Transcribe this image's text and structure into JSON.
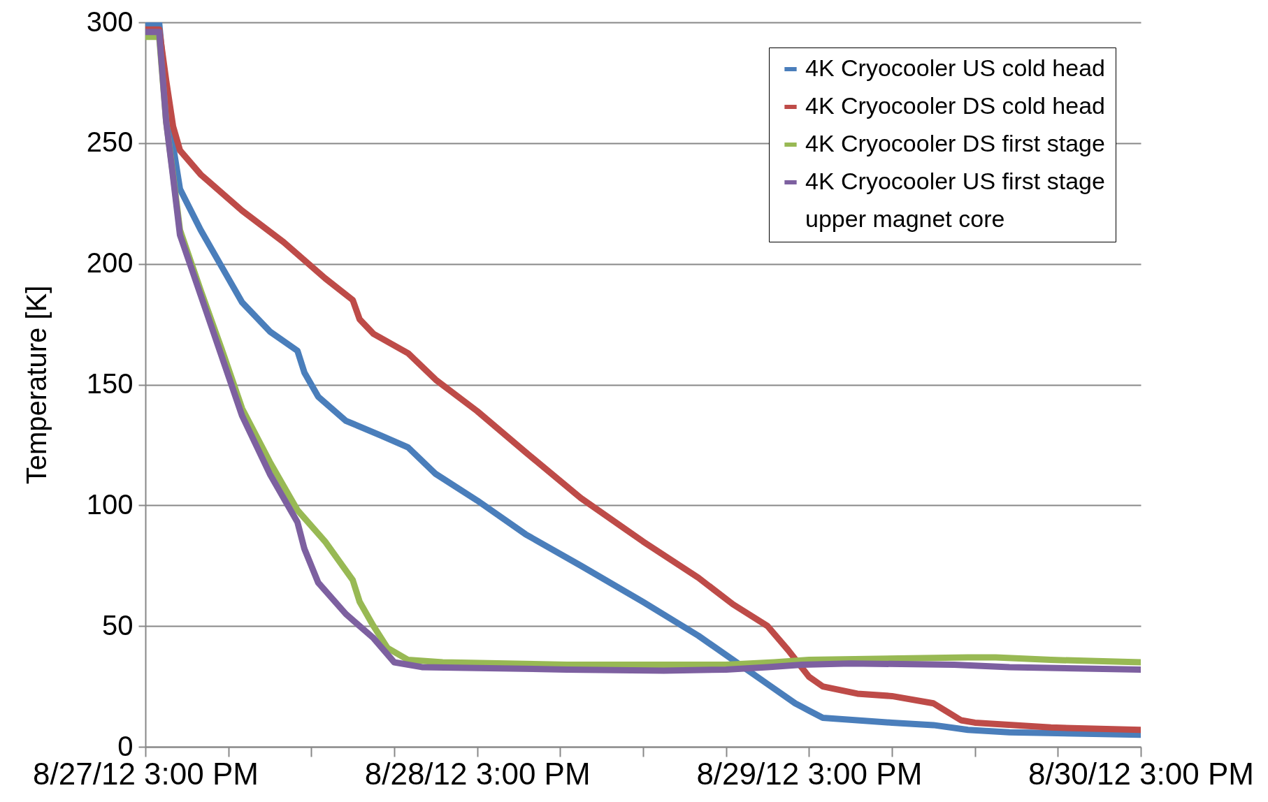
{
  "chart_data": {
    "type": "line",
    "ylabel": "Temperature [K]",
    "ylim": [
      0,
      300
    ],
    "yticks": [
      0,
      50,
      100,
      150,
      200,
      250,
      300
    ],
    "xlim": [
      "--08-27T15:00",
      "--08-30T15:00"
    ],
    "xticks": [
      {
        "value": "--08-27T15:00",
        "label": "8/27/12 3:00 PM"
      },
      {
        "value": "--08-27T21:00",
        "label": null
      },
      {
        "value": "--08-28T03:00",
        "label": null
      },
      {
        "value": "--08-28T09:00",
        "label": null
      },
      {
        "value": "--08-28T15:00",
        "label": "8/28/12 3:00 PM"
      },
      {
        "value": "--08-28T21:00",
        "label": null
      },
      {
        "value": "--08-29T03:00",
        "label": null
      },
      {
        "value": "--08-29T09:00",
        "label": null
      },
      {
        "value": "--08-29T15:00",
        "label": "8/29/12 3:00 PM"
      },
      {
        "value": "--08-29T21:00",
        "label": null
      },
      {
        "value": "--08-30T03:00",
        "label": null
      },
      {
        "value": "--08-30T09:00",
        "label": null
      },
      {
        "value": "--08-30T15:00",
        "label": "8/30/12 3:00 PM"
      }
    ],
    "grid": "y",
    "legend": "top right",
    "series": [
      {
        "name": "4K Cryocooler US cold head",
        "color": "#4a7ebb",
        "x": [
          "--08-27T15:00",
          "--08-27T16:00",
          "--08-27T16:30",
          "--08-27T17:00",
          "--08-27T17:30",
          "--08-27T19:00",
          "--08-27T20:30",
          "--08-27T22:00",
          "--08-28T00:00",
          "--08-28T02:00",
          "--08-28T02:30",
          "--08-28T03:30",
          "--08-28T05:30",
          "--08-28T08:00",
          "--08-28T10:00",
          "--08-28T12:00",
          "--08-28T15:00",
          "--08-28T18:30",
          "--08-28T22:30",
          "--08-29T03:00",
          "--08-29T07:00",
          "--08-29T09:30",
          "--08-29T12:00",
          "--08-29T14:00",
          "--08-29T15:00",
          "--08-29T16:00",
          "--08-29T21:00",
          "--08-30T00:00",
          "--08-30T02:30",
          "--08-30T05:30",
          "--08-30T15:00"
        ],
        "values": [
          299.5,
          299.5,
          269,
          249,
          231,
          214,
          199,
          184,
          172,
          164,
          155,
          145,
          135,
          129,
          124,
          113,
          102,
          88,
          75,
          60,
          46,
          36,
          26,
          18,
          15,
          12,
          10,
          9,
          7,
          6,
          5
        ]
      },
      {
        "name": "4K Cryocooler DS cold head",
        "color": "#be4b48",
        "x": [
          "--08-27T15:00",
          "--08-27T16:00",
          "--08-27T16:30",
          "--08-27T17:00",
          "--08-27T17:30",
          "--08-27T19:00",
          "--08-27T22:00",
          "--08-28T01:00",
          "--08-28T04:00",
          "--08-28T06:00",
          "--08-28T06:30",
          "--08-28T07:30",
          "--08-28T10:00",
          "--08-28T12:00",
          "--08-28T15:00",
          "--08-28T18:30",
          "--08-28T22:30",
          "--08-29T03:00",
          "--08-29T07:00",
          "--08-29T09:30",
          "--08-29T12:00",
          "--08-29T13:30",
          "--08-29T15:00",
          "--08-29T16:00",
          "--08-29T18:30",
          "--08-29T21:00",
          "--08-30T00:00",
          "--08-30T02:00",
          "--08-30T03:00",
          "--08-30T08:30",
          "--08-30T15:00"
        ],
        "values": [
          297,
          297,
          276,
          257,
          247,
          237,
          222,
          209,
          194,
          185,
          177,
          171,
          163,
          152,
          139,
          122,
          103,
          85,
          70,
          59,
          50,
          40,
          29,
          25,
          22,
          21,
          18,
          11,
          10,
          8,
          7
        ]
      },
      {
        "name": "4K Cryocooler DS first stage",
        "color": "#98b954",
        "x": [
          "--08-27T15:00",
          "--08-27T16:00",
          "--08-27T16:30",
          "--08-27T17:00",
          "--08-27T17:30",
          "--08-27T19:00",
          "--08-27T20:30",
          "--08-27T22:00",
          "--08-28T00:00",
          "--08-28T02:00",
          "--08-28T04:00",
          "--08-28T06:00",
          "--08-28T06:30",
          "--08-28T07:30",
          "--08-28T08:30",
          "--08-28T10:00",
          "--08-28T12:30",
          "--08-28T21:30",
          "--08-29T09:00",
          "--08-29T12:30",
          "--08-29T15:00",
          "--08-30T02:30",
          "--08-30T04:30",
          "--08-30T08:30",
          "--08-30T15:00"
        ],
        "values": [
          294,
          294,
          259,
          237,
          214,
          189,
          165,
          140,
          118,
          98,
          85,
          69,
          60,
          50,
          41,
          36,
          35,
          34,
          34,
          35,
          36,
          37,
          37,
          36,
          35
        ]
      },
      {
        "name": "4K Cryocooler US first stage",
        "color": "#7d60a0",
        "x": [
          "--08-27T15:00",
          "--08-27T16:00",
          "--08-27T16:30",
          "--08-27T17:00",
          "--08-27T17:30",
          "--08-27T19:00",
          "--08-27T20:30",
          "--08-27T22:00",
          "--08-28T00:00",
          "--08-28T02:00",
          "--08-28T02:30",
          "--08-28T03:30",
          "--08-28T05:30",
          "--08-28T07:30",
          "--08-28T09:00",
          "--08-28T11:00",
          "--08-28T21:30",
          "--08-29T04:30",
          "--08-29T09:00",
          "--08-29T12:00",
          "--08-29T14:30",
          "--08-29T18:00",
          "--08-30T01:30",
          "--08-30T05:30",
          "--08-30T15:00"
        ],
        "values": [
          296,
          296,
          259,
          236,
          212,
          187,
          162,
          137,
          113,
          93,
          82,
          68,
          55,
          45,
          35,
          33,
          32,
          31.5,
          32,
          33,
          34,
          34.5,
          34,
          33,
          32
        ]
      },
      {
        "name": "upper magnet core"
      }
    ]
  }
}
